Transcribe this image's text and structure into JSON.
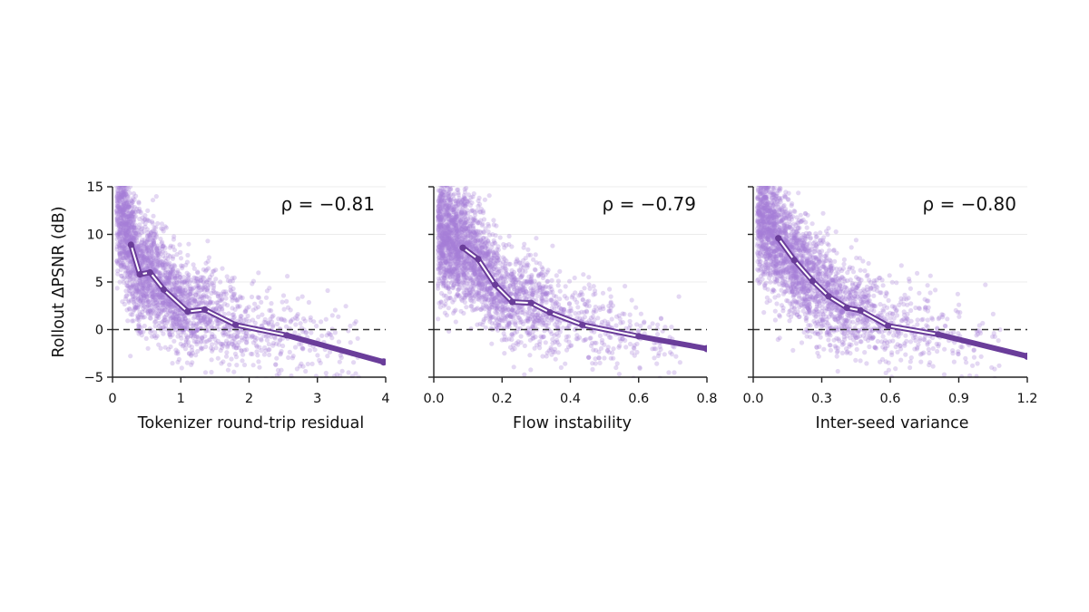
{
  "colors": {
    "scatter": "#a57fd6",
    "trend": "#6a3d9a",
    "trend_halo": "#ffffff",
    "zero_line": "#333333",
    "grid": "#ececec",
    "axis": "#222222"
  },
  "ylabel": "Rollout ΔPSNR (dB)",
  "chart_data": [
    {
      "type": "scatter",
      "xlabel": "Tokenizer round-trip residual",
      "ylabel": "Rollout ΔPSNR (dB)",
      "annotation": "ρ = −0.81",
      "xlim": [
        0,
        4
      ],
      "ylim": [
        -5,
        15
      ],
      "xticks": [
        0,
        1,
        2,
        3,
        4
      ],
      "xtick_labels": [
        "0",
        "1",
        "2",
        "3",
        "4"
      ],
      "yticks": [
        -5,
        0,
        5,
        10,
        15
      ],
      "ytick_labels": [
        "−5",
        "0",
        "5",
        "10",
        "15"
      ],
      "grid": "horizontal",
      "reference_line_y": 0,
      "scatter_shape": {
        "scale": 1.0,
        "count": 2600
      },
      "binned_trend": {
        "x": [
          0.27,
          0.4,
          0.55,
          0.75,
          1.1,
          1.35,
          1.8,
          2.55,
          3.97
        ],
        "y": [
          8.9,
          5.8,
          6.0,
          4.2,
          1.9,
          2.1,
          0.5,
          -0.6,
          -3.4
        ]
      }
    },
    {
      "type": "scatter",
      "xlabel": "Flow instability",
      "ylabel": "",
      "annotation": "ρ = −0.79",
      "xlim": [
        0,
        0.8
      ],
      "ylim": [
        -5,
        15
      ],
      "xticks": [
        0,
        0.2,
        0.4,
        0.6,
        0.8
      ],
      "xtick_labels": [
        "0.0",
        "0.2",
        "0.4",
        "0.6",
        "0.8"
      ],
      "yticks": [
        -5,
        0,
        5,
        10,
        15
      ],
      "ytick_labels": [
        "",
        "",
        "",
        "",
        ""
      ],
      "grid": "horizontal",
      "reference_line_y": 0,
      "scatter_shape": {
        "scale": 0.2,
        "count": 2600
      },
      "binned_trend": {
        "x": [
          0.085,
          0.13,
          0.18,
          0.23,
          0.285,
          0.34,
          0.435,
          0.6,
          0.8
        ],
        "y": [
          8.6,
          7.4,
          4.7,
          2.9,
          2.8,
          1.8,
          0.5,
          -0.7,
          -2.0
        ]
      }
    },
    {
      "type": "scatter",
      "xlabel": "Inter-seed variance",
      "ylabel": "",
      "annotation": "ρ = −0.80",
      "xlim": [
        0,
        1.2
      ],
      "ylim": [
        -5,
        15
      ],
      "xticks": [
        0,
        0.3,
        0.6,
        0.9,
        1.2
      ],
      "xtick_labels": [
        "0.0",
        "0.3",
        "0.6",
        "0.9",
        "1.2"
      ],
      "yticks": [
        -5,
        0,
        5,
        10,
        15
      ],
      "ytick_labels": [
        "",
        "",
        "",
        "",
        ""
      ],
      "grid": "horizontal",
      "reference_line_y": 0,
      "scatter_shape": {
        "scale": 0.3,
        "count": 2600
      },
      "binned_trend": {
        "x": [
          0.11,
          0.18,
          0.26,
          0.33,
          0.41,
          0.47,
          0.59,
          0.81,
          1.2
        ],
        "y": [
          9.6,
          7.3,
          5.1,
          3.5,
          2.3,
          2.0,
          0.4,
          -0.5,
          -2.8
        ]
      }
    }
  ]
}
